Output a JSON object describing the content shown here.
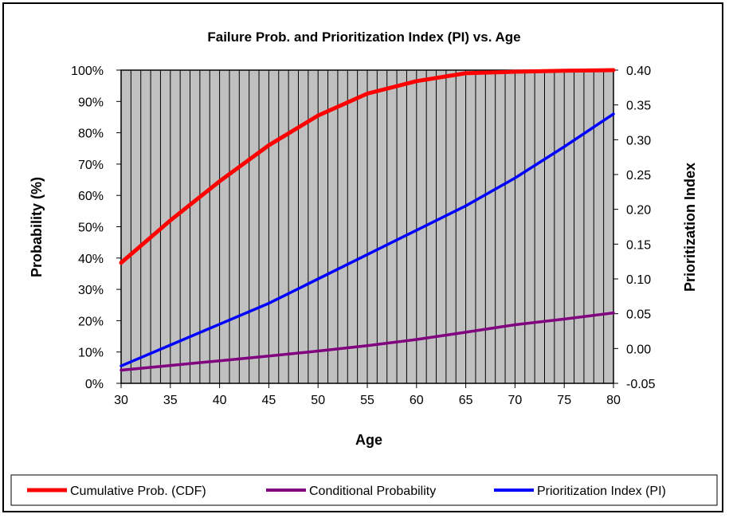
{
  "chart_data": {
    "type": "line",
    "title": "Failure Prob. and Prioritization Index (PI) vs. Age",
    "xlabel": "Age",
    "ylabel": "Probability (%)",
    "y2label": "Prioritization Index",
    "xlim": [
      30,
      80
    ],
    "ylim": [
      0,
      100
    ],
    "y2lim": [
      -0.05,
      0.4
    ],
    "x_ticks": [
      "30",
      "35",
      "40",
      "45",
      "50",
      "55",
      "60",
      "65",
      "70",
      "75",
      "80"
    ],
    "y_ticks": [
      "0%",
      "10%",
      "20%",
      "30%",
      "40%",
      "50%",
      "60%",
      "70%",
      "80%",
      "90%",
      "100%"
    ],
    "y2_ticks": [
      "-0.05",
      "0.00",
      "0.05",
      "0.10",
      "0.15",
      "0.20",
      "0.25",
      "0.30",
      "0.35",
      "0.40"
    ],
    "grid": "vertical",
    "plot_background": "#c0c0c0",
    "legend_position": "bottom",
    "x": [
      30,
      35,
      40,
      45,
      50,
      55,
      60,
      65,
      70,
      75,
      80
    ],
    "series": [
      {
        "name": "Cumulative Prob. (CDF)",
        "axis": "left",
        "color": "#ff0000",
        "values": [
          38.5,
          52,
          64.5,
          76,
          85.5,
          92.5,
          96.5,
          99,
          99.5,
          99.8,
          100
        ]
      },
      {
        "name": "Conditional Probability",
        "axis": "left",
        "color": "#800080",
        "values": [
          4.2,
          5.7,
          7.2,
          8.7,
          10.3,
          12.0,
          14.0,
          16.3,
          18.7,
          20.5,
          22.5
        ]
      },
      {
        "name": "Prioritization Index (PI)",
        "axis": "right",
        "color": "#0000ff",
        "values": [
          -0.025,
          0.005,
          0.035,
          0.065,
          0.1,
          0.135,
          0.17,
          0.205,
          0.245,
          0.29,
          0.337
        ]
      }
    ]
  }
}
